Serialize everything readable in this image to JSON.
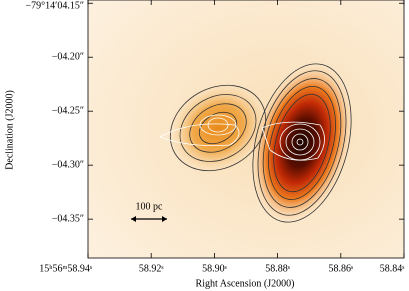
{
  "chart_data": {
    "type": "image",
    "xlabel": "Right Ascension (J2000)",
    "ylabel": "Declination (J2000)",
    "xlim": [
      58.94,
      58.84
    ],
    "ylim": [
      -4.386,
      -4.147
    ],
    "xticks": [
      {
        "value": 58.94,
        "label": "15ʰ56ᵐ58.94ˢ"
      },
      {
        "value": 58.92,
        "label": "58.92ˢ"
      },
      {
        "value": 58.9,
        "label": "58.90ˢ"
      },
      {
        "value": 58.88,
        "label": "58.88ˢ"
      },
      {
        "value": 58.86,
        "label": "58.86ˢ"
      },
      {
        "value": 58.84,
        "label": "58.84ˢ"
      }
    ],
    "yticks": [
      {
        "value": -4.15,
        "label": "−79°14′04.15″"
      },
      {
        "value": -4.2,
        "label": "−04.20″"
      },
      {
        "value": -4.25,
        "label": "−04.25″"
      },
      {
        "value": -4.3,
        "label": "−04.30″"
      },
      {
        "value": -4.35,
        "label": "−04.35″"
      }
    ],
    "annotation": "100 pc"
  }
}
